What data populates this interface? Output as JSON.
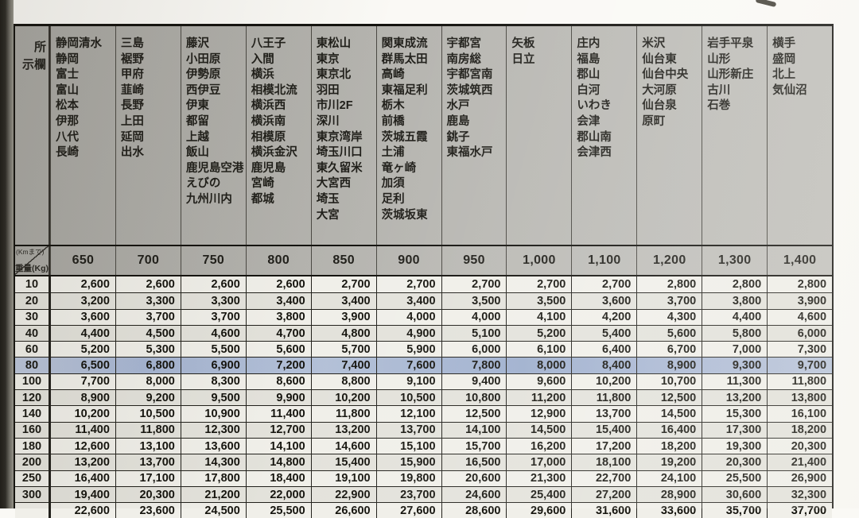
{
  "colors": {
    "paper": "#faf9f5",
    "header_gray": "#b3b2ad",
    "row_light": "#f0efe9",
    "row_dark": "#e3e2db",
    "highlight_blue": "#a8b7d3",
    "ink": "#1c1b17"
  },
  "table": {
    "corner": {
      "top_label": "(Kmまで)",
      "bottom_label": "重量(Kg)"
    },
    "left_header_lines": [
      "所",
      "示欄"
    ],
    "columns": [
      {
        "distance": "650",
        "cities": [
          "静岡清水",
          "静岡",
          "富士",
          "富山",
          "松本",
          "伊那",
          "八代",
          "長崎"
        ]
      },
      {
        "distance": "700",
        "cities": [
          "三島",
          "裾野",
          "甲府",
          "韮崎",
          "長野",
          "上田",
          "延岡",
          "出水"
        ]
      },
      {
        "distance": "750",
        "cities": [
          "藤沢",
          "小田原",
          "伊勢原",
          "西伊豆",
          "伊東",
          "都留",
          "上越",
          "飯山",
          "鹿児島空港",
          "えびの",
          "九州川内"
        ]
      },
      {
        "distance": "800",
        "cities": [
          "八王子",
          "入間",
          "横浜",
          "相模北流",
          "横浜西",
          "横浜南",
          "相模原",
          "横浜金沢",
          "鹿児島",
          "宮崎",
          "都城"
        ]
      },
      {
        "distance": "850",
        "cities": [
          "東松山",
          "東京",
          "東京北",
          "羽田",
          "市川2F",
          "深川",
          "東京湾岸",
          "埼玉川口",
          "東久留米",
          "大宮西",
          "埼玉",
          "大宮"
        ]
      },
      {
        "distance": "900",
        "cities": [
          "関東成流",
          "群馬太田",
          "高崎",
          "東福足利",
          "栃木",
          "前橋",
          "茨城五霞",
          "土浦",
          "竜ヶ崎",
          "加須",
          "足利",
          "茨城坂東"
        ]
      },
      {
        "distance": "950",
        "cities": [
          "宇都宮",
          "南房総",
          "宇都宮南",
          "茨城筑西",
          "水戸",
          "鹿島",
          "銚子",
          "東福水戸"
        ]
      },
      {
        "distance": "1,000",
        "cities": [
          "矢板",
          "日立"
        ]
      },
      {
        "distance": "1,100",
        "cities": [
          "庄内",
          "福島",
          "郡山",
          "白河",
          "いわき",
          "会津",
          "郡山南",
          "会津西"
        ]
      },
      {
        "distance": "1,200",
        "cities": [
          "米沢",
          "仙台東",
          "仙台中央",
          "大河原",
          "仙台泉",
          "原町"
        ]
      },
      {
        "distance": "1,300",
        "cities": [
          "岩手平泉",
          "山形",
          "山形新庄",
          "古川",
          "石巻"
        ]
      },
      {
        "distance": "1,400",
        "cities": [
          "横手",
          "盛岡",
          "北上",
          "気仙沼"
        ]
      }
    ],
    "rows": [
      {
        "weight": "10",
        "values": [
          "2,600",
          "2,600",
          "2,600",
          "2,600",
          "2,700",
          "2,700",
          "2,700",
          "2,700",
          "2,700",
          "2,800",
          "2,800",
          "2,800"
        ]
      },
      {
        "weight": "20",
        "values": [
          "3,200",
          "3,300",
          "3,300",
          "3,400",
          "3,400",
          "3,400",
          "3,500",
          "3,500",
          "3,600",
          "3,700",
          "3,800",
          "3,900"
        ]
      },
      {
        "weight": "30",
        "values": [
          "3,600",
          "3,700",
          "3,700",
          "3,800",
          "3,900",
          "4,000",
          "4,000",
          "4,100",
          "4,200",
          "4,300",
          "4,400",
          "4,600"
        ]
      },
      {
        "weight": "40",
        "values": [
          "4,400",
          "4,500",
          "4,600",
          "4,700",
          "4,800",
          "4,900",
          "5,100",
          "5,200",
          "5,400",
          "5,600",
          "5,800",
          "6,000"
        ]
      },
      {
        "weight": "60",
        "values": [
          "5,200",
          "5,300",
          "5,500",
          "5,600",
          "5,700",
          "5,900",
          "6,000",
          "6,100",
          "6,400",
          "6,700",
          "7,000",
          "7,300"
        ]
      },
      {
        "weight": "80",
        "values": [
          "6,500",
          "6,800",
          "6,900",
          "7,200",
          "7,400",
          "7,600",
          "7,800",
          "8,000",
          "8,400",
          "8,900",
          "9,300",
          "9,700"
        ],
        "highlight": true
      },
      {
        "weight": "100",
        "values": [
          "7,700",
          "8,000",
          "8,300",
          "8,600",
          "8,800",
          "9,100",
          "9,400",
          "9,600",
          "10,200",
          "10,700",
          "11,300",
          "11,800"
        ]
      },
      {
        "weight": "120",
        "values": [
          "8,900",
          "9,200",
          "9,500",
          "9,900",
          "10,200",
          "10,500",
          "10,800",
          "11,200",
          "11,800",
          "12,500",
          "13,200",
          "13,800"
        ]
      },
      {
        "weight": "140",
        "values": [
          "10,200",
          "10,500",
          "10,900",
          "11,400",
          "11,800",
          "12,100",
          "12,500",
          "12,900",
          "13,700",
          "14,500",
          "15,300",
          "16,100"
        ]
      },
      {
        "weight": "160",
        "values": [
          "11,400",
          "11,800",
          "12,300",
          "12,700",
          "13,200",
          "13,700",
          "14,100",
          "14,500",
          "15,400",
          "16,400",
          "17,300",
          "18,200"
        ]
      },
      {
        "weight": "180",
        "values": [
          "12,600",
          "13,100",
          "13,600",
          "14,100",
          "14,600",
          "15,100",
          "15,700",
          "16,200",
          "17,200",
          "18,200",
          "19,300",
          "20,300"
        ]
      },
      {
        "weight": "200",
        "values": [
          "13,200",
          "13,700",
          "14,300",
          "14,800",
          "15,400",
          "15,900",
          "16,500",
          "17,000",
          "18,100",
          "19,200",
          "20,300",
          "21,400"
        ]
      },
      {
        "weight": "250",
        "values": [
          "16,400",
          "17,100",
          "17,800",
          "18,400",
          "19,100",
          "19,800",
          "20,600",
          "21,300",
          "22,700",
          "24,100",
          "25,500",
          "26,900"
        ]
      },
      {
        "weight": "300",
        "values": [
          "19,400",
          "20,300",
          "21,200",
          "22,000",
          "22,900",
          "23,700",
          "24,600",
          "25,400",
          "27,200",
          "28,900",
          "30,600",
          "32,300"
        ]
      },
      {
        "weight": "",
        "values": [
          "22,600",
          "23,600",
          "24,500",
          "25,500",
          "26,600",
          "27,600",
          "28,600",
          "29,600",
          "31,600",
          "33,600",
          "35,700",
          "37,700"
        ],
        "clipped": true
      }
    ]
  }
}
